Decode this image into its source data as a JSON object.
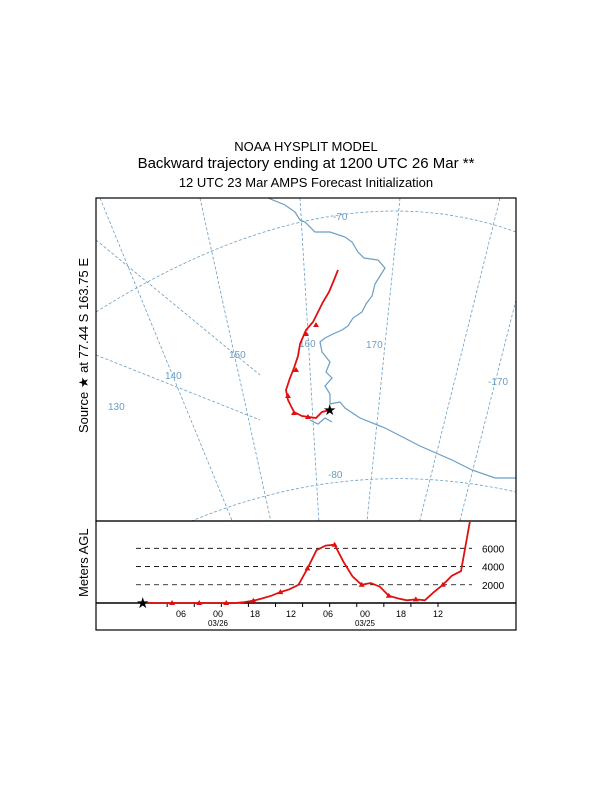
{
  "header": {
    "line1": "NOAA HYSPLIT MODEL",
    "line2": "Backward trajectory ending at 1200 UTC 26 Mar **",
    "line3": "12 UTC 23 Mar    AMPS  Forecast Initialization"
  },
  "map": {
    "source_label": "Source ★ at   77.44 S  163.75 E",
    "source": {
      "lat": -77.44,
      "lon": 163.75
    },
    "longitude_labels": [
      "130",
      "140",
      "150",
      "160",
      "170",
      "-170"
    ],
    "latitude_labels": [
      "-70",
      "-80"
    ],
    "colors": {
      "trajectory": "#e01010",
      "map_lines": "#6a9ec4",
      "frame": "#000000"
    }
  },
  "chart_data": {
    "type": "line",
    "title": "",
    "ylabel": "Meters AGL",
    "xlabel": "",
    "x_tick_labels": [
      "06",
      "00",
      "18",
      "12",
      "06",
      "00",
      "18",
      "12"
    ],
    "date_labels": [
      "03/26",
      "03/25"
    ],
    "y_tick_labels": [
      "6000",
      "4000",
      "2000"
    ],
    "ylim": [
      0,
      9000
    ],
    "time_direction": "backward",
    "series": [
      {
        "hours_before_end": [
          0,
          6,
          8,
          10,
          12,
          14,
          16,
          18,
          20,
          22,
          24,
          26,
          28,
          30,
          32,
          34,
          36,
          38,
          40,
          42,
          44,
          46,
          48,
          50,
          52,
          54,
          56,
          58,
          60,
          62,
          64,
          66,
          68,
          70,
          72
        ],
        "height_m": [
          0,
          0,
          0,
          0,
          0,
          0,
          0,
          0,
          0,
          100,
          250,
          500,
          800,
          1200,
          1500,
          2000,
          3800,
          5800,
          6300,
          6400,
          4500,
          2900,
          2000,
          2200,
          1800,
          800,
          500,
          300,
          400,
          300,
          1200,
          2000,
          3000,
          3500,
          9000
        ]
      }
    ]
  }
}
